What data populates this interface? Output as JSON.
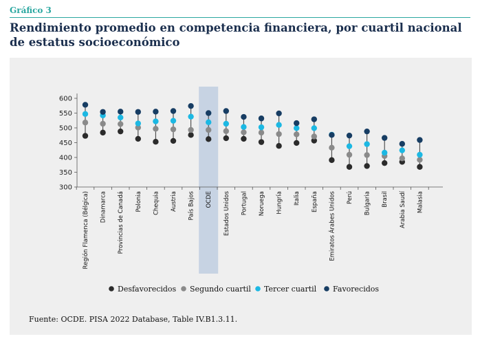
{
  "header": {
    "figure_label": "Gráfico 3",
    "title": "Rendimiento promedio en competencia financiera, por cuartil nacional de estatus socioeconómico"
  },
  "source": "Fuente: OCDE. PISA 2022 Database, Table IV.B1.3.11.",
  "colors": {
    "desfavorecidos": "#2b2b2b",
    "segundo_cuartil": "#8a8a8a",
    "tercer_cuartil": "#1cb8e3",
    "favorecidos": "#173d63",
    "highlight_band": "#c7d3e3",
    "panel_bg": "#efefef"
  },
  "chart_data": {
    "type": "scatter",
    "title": "",
    "xlabel": "",
    "ylabel": "",
    "ylim": [
      300,
      600
    ],
    "yticks": [
      "300",
      "350",
      "400",
      "450",
      "500",
      "550",
      "600"
    ],
    "grid": false,
    "legend_position": "bottom",
    "highlighted_category": "OCDE",
    "categories": [
      "Región Flamenca (Bélgica)",
      "Dinamarca",
      "Provincias de Canadá",
      "Polonia",
      "Chequia",
      "Austria",
      "País Bajos",
      "OCDE",
      "Estados Unidos",
      "Portugal",
      "Noruega",
      "Hungría",
      "Italia",
      "España",
      "Emiratos Árabes Unidos",
      "Perú",
      "Bulgaria",
      "Brasil",
      "Arabia Saudí",
      "Malasia"
    ],
    "series": [
      {
        "name": "Desfavorecidos",
        "values": [
          473,
          484,
          488,
          463,
          453,
          456,
          476,
          462,
          465,
          463,
          452,
          439,
          449,
          457,
          391,
          368,
          371,
          381,
          385,
          368
        ]
      },
      {
        "name": "Segundo cuartil",
        "values": [
          518,
          514,
          513,
          501,
          497,
          495,
          493,
          493,
          489,
          485,
          484,
          479,
          478,
          471,
          433,
          409,
          408,
          405,
          397,
          392
        ]
      },
      {
        "name": "Tercer cuartil",
        "values": [
          547,
          542,
          535,
          515,
          522,
          524,
          538,
          519,
          514,
          503,
          502,
          510,
          499,
          499,
          477,
          438,
          445,
          416,
          424,
          409
        ]
      },
      {
        "name": "Favorecidos",
        "values": [
          578,
          554,
          555,
          554,
          555,
          557,
          574,
          550,
          557,
          537,
          532,
          549,
          516,
          529,
          476,
          474,
          488,
          466,
          446,
          459
        ]
      }
    ]
  }
}
